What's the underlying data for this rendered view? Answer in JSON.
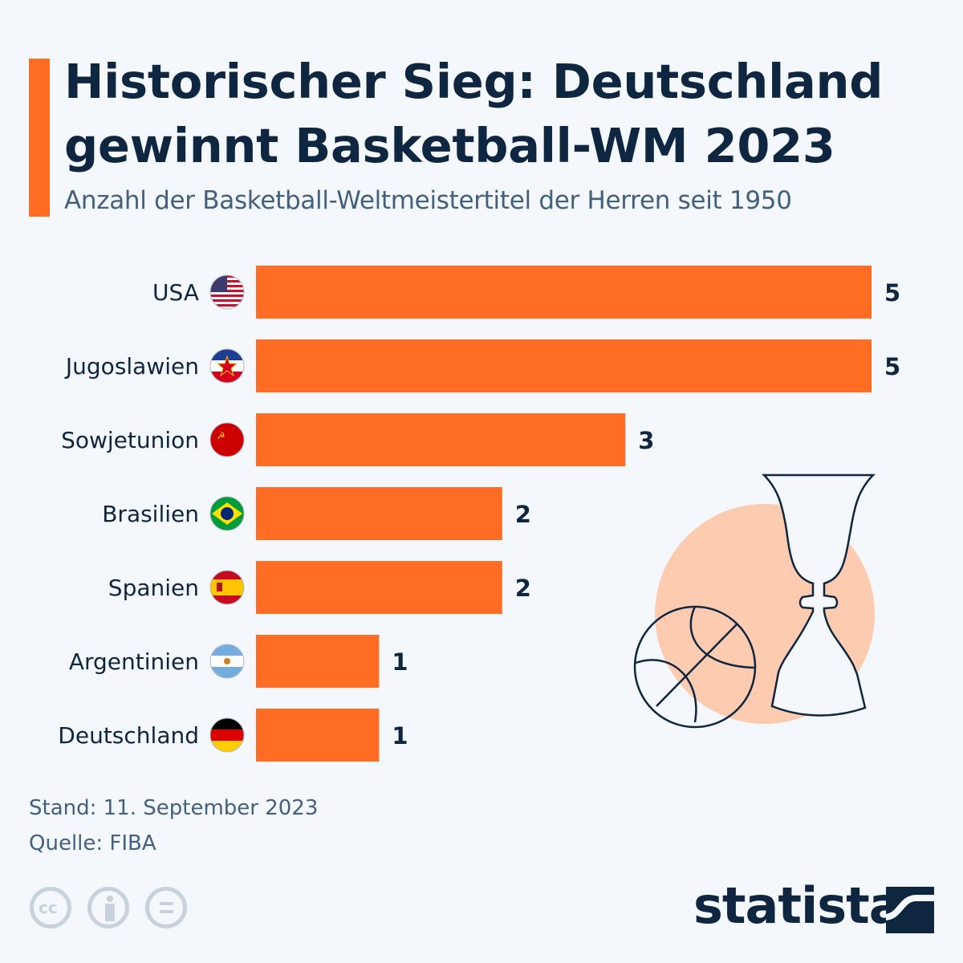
{
  "header": {
    "title": "Historischer Sieg: Deutschland gewinnt Basketball-WM 2023",
    "subtitle": "Anzahl der Basketball-Weltmeistertitel der Herren seit 1950"
  },
  "footer": {
    "stand": "Stand: 11. September 2023",
    "quelle": "Quelle: FIBA",
    "license_icons": [
      "cc-icon",
      "attribution-icon",
      "no-derivatives-icon"
    ],
    "brand": "statista"
  },
  "colors": {
    "bar": "#ff6d24",
    "text": "#0f2640",
    "subtitle": "#43607f",
    "circle": "#fdcbb0"
  },
  "chart_data": {
    "type": "bar",
    "orientation": "horizontal",
    "title": "Historischer Sieg: Deutschland gewinnt Basketball-WM 2023",
    "subtitle": "Anzahl der Basketball-Weltmeistertitel der Herren seit 1950",
    "xlabel": "",
    "ylabel": "",
    "xlim": [
      0,
      5
    ],
    "grid": false,
    "categories": [
      "USA",
      "Jugoslawien",
      "Sowjetunion",
      "Brasilien",
      "Spanien",
      "Argentinien",
      "Deutschland"
    ],
    "flags": [
      "us-flag",
      "yugoslavia-flag",
      "soviet-flag",
      "brazil-flag",
      "spain-flag",
      "argentina-flag",
      "germany-flag"
    ],
    "values": [
      5,
      5,
      3,
      2,
      2,
      1,
      1
    ]
  }
}
